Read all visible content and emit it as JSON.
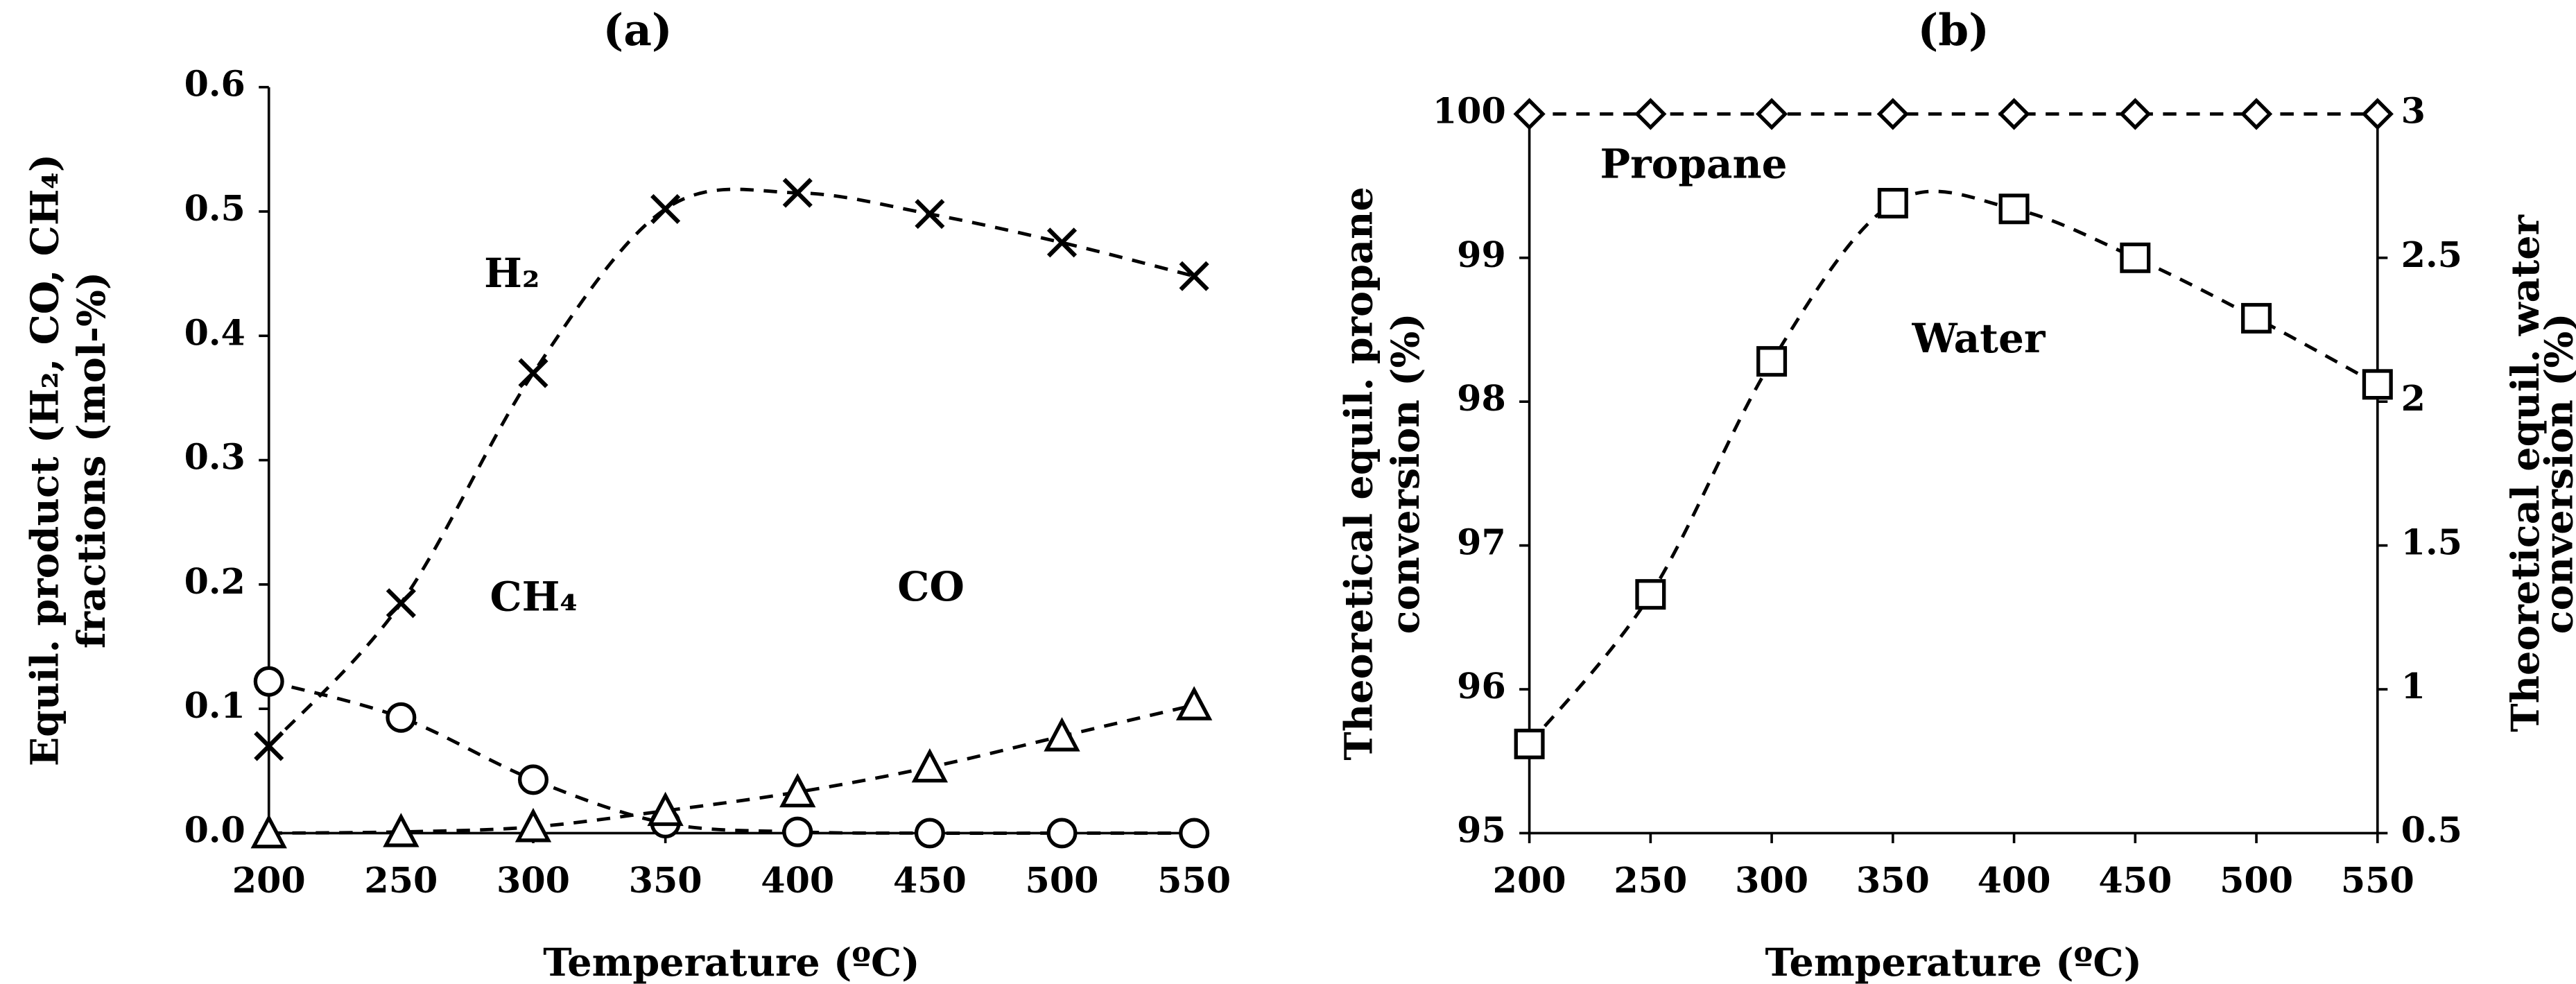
{
  "chart_data": [
    {
      "type": "line",
      "title": "(a)",
      "xlabel": "Temperature (ºC)",
      "ylabel": [
        "Equil. product (H₂, CO, CH₄)",
        "fractions (mol-%)"
      ],
      "x": [
        200,
        250,
        300,
        350,
        400,
        450,
        500,
        550
      ],
      "xlim": [
        200,
        550
      ],
      "xticks": [
        200,
        250,
        300,
        350,
        400,
        450,
        500,
        550
      ],
      "ylim": [
        0,
        0.6
      ],
      "yticks": [
        {
          "value": 0,
          "label": "0.0"
        },
        0.1,
        0.2,
        0.3,
        0.4,
        0.5,
        0.6
      ],
      "grid": false,
      "series": [
        {
          "name": "H₂",
          "color": "#000000",
          "marker": "x",
          "values": [
            0.07,
            0.185,
            0.37,
            0.502,
            0.515,
            0.498,
            0.475,
            0.448
          ]
        },
        {
          "name": "CH₄",
          "color": "#000000",
          "marker": "circle",
          "values": [
            0.122,
            0.093,
            0.043,
            0.008,
            0.001,
            0.0,
            0.0,
            0.0
          ]
        },
        {
          "name": "CO",
          "color": "#000000",
          "marker": "triangle",
          "values": [
            0.0,
            0.001,
            0.005,
            0.018,
            0.033,
            0.053,
            0.078,
            0.103
          ]
        }
      ]
    },
    {
      "type": "line",
      "title": "(b)",
      "xlabel": "Temperature (ºC)",
      "ylabel": [
        "Theoretical equil. propane",
        "conversion (%)"
      ],
      "y2label": [
        "Theoretical equil. water",
        "conversion (%)"
      ],
      "x": [
        200,
        250,
        300,
        350,
        400,
        450,
        500,
        550
      ],
      "xlim": [
        200,
        550
      ],
      "xticks": [
        200,
        250,
        300,
        350,
        400,
        450,
        500,
        550
      ],
      "ylim": [
        95,
        100
      ],
      "yticks": [
        95,
        96,
        97,
        98,
        99,
        100
      ],
      "y2lim": [
        0.5,
        3
      ],
      "y2ticks": [
        0.5,
        1,
        1.5,
        2,
        2.5,
        3
      ],
      "grid": false,
      "series": [
        {
          "name": "Propane",
          "color": "#000000",
          "marker": "diamond",
          "values": [
            100,
            100,
            100,
            100,
            100,
            100,
            100,
            100
          ]
        },
        {
          "name": "Water",
          "color": "#000000",
          "marker": "square",
          "axis": "y2",
          "values": [
            0.81,
            1.33,
            2.14,
            2.69,
            2.67,
            2.5,
            2.29,
            2.06
          ]
        }
      ]
    }
  ]
}
